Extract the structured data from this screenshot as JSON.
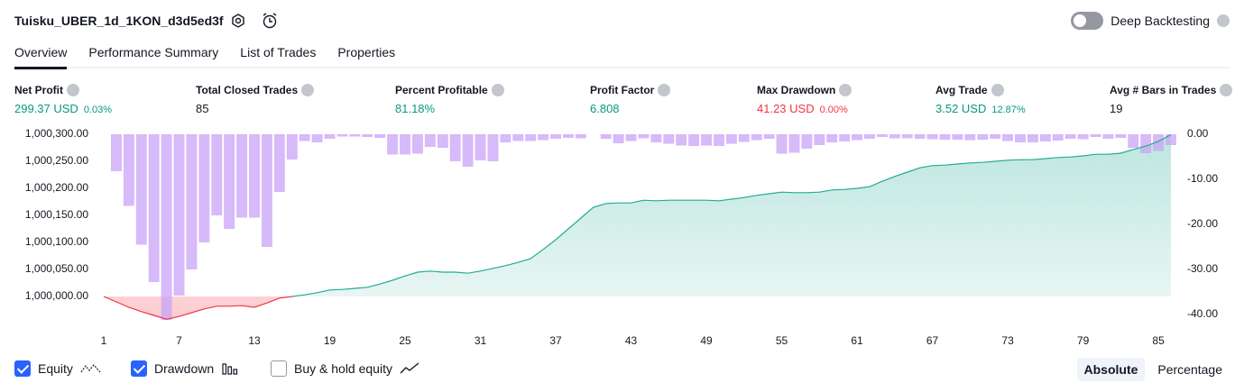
{
  "header": {
    "title": "Tuisku_UBER_1d_1KON_d3d5ed3f",
    "deep_backtesting": "Deep Backtesting",
    "deep_backtesting_on": false
  },
  "tabs": {
    "items": [
      "Overview",
      "Performance Summary",
      "List of Trades",
      "Properties"
    ],
    "active": 0
  },
  "metrics": [
    {
      "label": "Net Profit",
      "value": "299.37 USD",
      "sub": "0.03%",
      "color": "#089981"
    },
    {
      "label": "Total Closed Trades",
      "value": "85",
      "color": "#131722"
    },
    {
      "label": "Percent Profitable",
      "value": "81.18%",
      "color": "#089981"
    },
    {
      "label": "Profit Factor",
      "value": "6.808",
      "color": "#089981"
    },
    {
      "label": "Max Drawdown",
      "value": "41.23 USD",
      "sub": "0.00%",
      "color": "#f23645"
    },
    {
      "label": "Avg Trade",
      "value": "3.52 USD",
      "sub": "12.87%",
      "color": "#089981"
    },
    {
      "label": "Avg # Bars in Trades",
      "value": "19",
      "color": "#131722"
    }
  ],
  "chart_data": {
    "type": "equity",
    "xlim": [
      1,
      86
    ],
    "xticks": [
      1,
      7,
      13,
      19,
      25,
      31,
      37,
      43,
      49,
      55,
      61,
      67,
      73,
      79,
      85
    ],
    "ylim": [
      999955,
      1000300
    ],
    "yticks": [
      {
        "value": 1000000,
        "label": "1,000,000.00"
      },
      {
        "value": 1000050,
        "label": "1,000,050.00"
      },
      {
        "value": 1000100,
        "label": "1,000,100.00"
      },
      {
        "value": 1000150,
        "label": "1,000,150.00"
      },
      {
        "value": 1000200,
        "label": "1,000,200.00"
      },
      {
        "value": 1000250,
        "label": "1,000,250.00"
      },
      {
        "value": 1000300,
        "label": "1,000,300.00"
      }
    ],
    "y2lim": [
      -41.4,
      0
    ],
    "y2ticks": [
      {
        "value": 0,
        "label": "0.00"
      },
      {
        "value": -10,
        "label": "-10.00"
      },
      {
        "value": -20,
        "label": "-20.00"
      },
      {
        "value": -30,
        "label": "-30.00"
      },
      {
        "value": -40,
        "label": "-40.00"
      }
    ],
    "series": [
      {
        "name": "Equity",
        "color": "#22ab94",
        "negative_color": "#f23645",
        "visible": true,
        "values": [
          1000000,
          999990,
          999980,
          999972,
          999965,
          999958,
          999963,
          999970,
          999977,
          999982,
          999982,
          999983,
          999980,
          999988,
          999997,
          1000000,
          1000003,
          1000007,
          1000012,
          1000013,
          1000015,
          1000017,
          1000023,
          1000030,
          1000038,
          1000045,
          1000047,
          1000045,
          1000045,
          1000043,
          1000047,
          1000052,
          1000057,
          1000063,
          1000070,
          1000087,
          1000105,
          1000125,
          1000145,
          1000165,
          1000172,
          1000173,
          1000173,
          1000178,
          1000177,
          1000178,
          1000178,
          1000178,
          1000178,
          1000177,
          1000180,
          1000183,
          1000187,
          1000190,
          1000193,
          1000192,
          1000192,
          1000193,
          1000197,
          1000198,
          1000200,
          1000203,
          1000213,
          1000222,
          1000230,
          1000238,
          1000242,
          1000243,
          1000245,
          1000247,
          1000248,
          1000250,
          1000252,
          1000253,
          1000253,
          1000255,
          1000257,
          1000258,
          1000260,
          1000263,
          1000263,
          1000265,
          1000272,
          1000278,
          1000287,
          1000299.37
        ]
      },
      {
        "name": "Drawdown",
        "color": "#c9a3f7",
        "axis": "y2",
        "visible": true,
        "values": [
          0,
          -8.2,
          -15.9,
          -24.5,
          -32.8,
          -41.2,
          -35.8,
          -30,
          -24,
          -18,
          -21,
          -18.5,
          -18.5,
          -25,
          -12.8,
          -5.6,
          -1.5,
          -1.8,
          -1,
          -0.5,
          -0.5,
          -0.6,
          -0.8,
          -4.5,
          -4.5,
          -4.3,
          -2.8,
          -3,
          -6,
          -7.2,
          -5.8,
          -6,
          -1.8,
          -1.5,
          -1.5,
          -1.3,
          -1,
          -0.8,
          -0.9,
          0,
          -1,
          -2,
          -1.5,
          -0.9,
          -1.8,
          -2.1,
          -2.5,
          -2.6,
          -2.5,
          -2.6,
          -2.1,
          -1.7,
          -1.3,
          -1,
          -4.3,
          -4.1,
          -3.2,
          -2.4,
          -1.8,
          -1.6,
          -1.3,
          -1,
          -0.6,
          -0.9,
          -0.9,
          -1,
          -1.1,
          -1.2,
          -1.2,
          -1.3,
          -1.2,
          -1,
          -1.5,
          -1.8,
          -1.8,
          -1.6,
          -1.4,
          -1,
          -1.1,
          -0.6,
          -1,
          -0.8,
          -3,
          -4.2,
          -3.7,
          -2.4
        ]
      }
    ]
  },
  "controls": {
    "buy_hold": {
      "label": "Buy & hold equity",
      "checked": false
    },
    "scale_modes": [
      "Absolute",
      "Percentage"
    ],
    "scale_active": 0
  }
}
